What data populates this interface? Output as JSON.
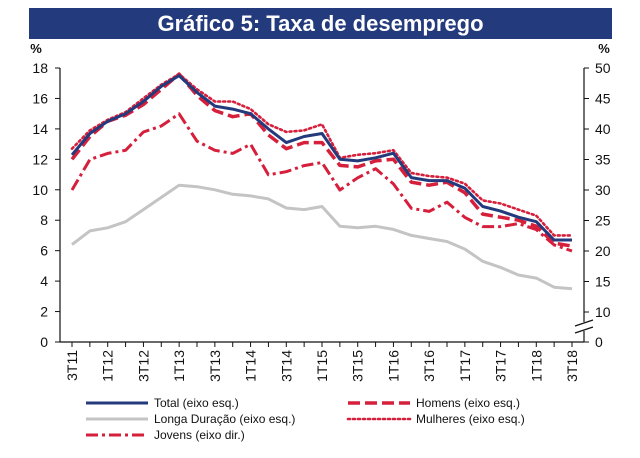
{
  "chart_data": {
    "type": "line",
    "title": "Gráfico 5: Taxa de desemprego",
    "left_axis": {
      "unit": "%",
      "ylim": [
        0,
        18
      ],
      "ticks": [
        0,
        2,
        4,
        6,
        8,
        10,
        12,
        14,
        16,
        18
      ]
    },
    "right_axis": {
      "unit": "%",
      "ylim": [
        5,
        50
      ],
      "ticks": [
        0,
        10,
        15,
        20,
        25,
        30,
        35,
        40,
        45,
        50
      ],
      "break_below": 10
    },
    "x_labels": [
      "3T11",
      "1T12",
      "3T12",
      "1T13",
      "3T13",
      "1T14",
      "3T14",
      "1T15",
      "3T15",
      "1T16",
      "3T16",
      "1T17",
      "3T17",
      "1T18",
      "3T18"
    ],
    "x": [
      "3T11",
      "4T11",
      "1T12",
      "2T12",
      "3T12",
      "4T12",
      "1T13",
      "2T13",
      "3T13",
      "4T13",
      "1T14",
      "2T14",
      "3T14",
      "4T14",
      "1T15",
      "2T15",
      "3T15",
      "4T15",
      "1T16",
      "2T16",
      "3T16",
      "4T16",
      "1T17",
      "2T17",
      "3T17",
      "4T17",
      "1T18",
      "2T18",
      "3T18"
    ],
    "series": [
      {
        "name": "Total (eixo esq.)",
        "axis": "left",
        "color": "#233a7c",
        "style": "solid",
        "values": [
          12.3,
          13.7,
          14.5,
          15.0,
          15.8,
          16.8,
          17.5,
          16.4,
          15.5,
          15.3,
          15.0,
          14.0,
          13.1,
          13.5,
          13.7,
          12.0,
          11.9,
          12.1,
          12.4,
          10.8,
          10.6,
          10.6,
          10.1,
          8.9,
          8.6,
          8.2,
          7.9,
          6.7,
          6.7
        ]
      },
      {
        "name": "Homens (eixo esq.)",
        "axis": "left",
        "color": "#d61f3b",
        "style": "dashed",
        "values": [
          12.0,
          13.5,
          14.5,
          14.9,
          15.6,
          16.6,
          17.6,
          16.2,
          15.2,
          14.8,
          15.0,
          13.6,
          12.7,
          13.1,
          13.1,
          11.6,
          11.5,
          11.9,
          12.0,
          10.5,
          10.3,
          10.5,
          9.8,
          8.4,
          8.2,
          8.0,
          7.6,
          6.5,
          6.3
        ]
      },
      {
        "name": "Mulheres (eixo esq.)",
        "axis": "left",
        "color": "#d61f3b",
        "style": "dotted",
        "values": [
          12.7,
          13.9,
          14.6,
          15.1,
          16.0,
          16.9,
          17.6,
          16.6,
          15.8,
          15.8,
          15.3,
          14.3,
          13.8,
          13.9,
          14.3,
          12.1,
          12.3,
          12.4,
          12.6,
          11.1,
          10.9,
          10.8,
          10.4,
          9.3,
          9.1,
          8.7,
          8.3,
          7.0,
          7.0
        ]
      },
      {
        "name": "Longa Duração (eixo esq.)",
        "axis": "left",
        "color": "#c4c4c4",
        "style": "solid",
        "values": [
          6.4,
          7.3,
          7.5,
          7.9,
          8.7,
          9.5,
          10.3,
          10.2,
          10.0,
          9.7,
          9.6,
          9.4,
          8.8,
          8.7,
          8.9,
          7.6,
          7.5,
          7.6,
          7.4,
          7.0,
          6.8,
          6.6,
          6.1,
          5.3,
          4.9,
          4.4,
          4.2,
          3.6,
          3.5
        ]
      },
      {
        "name": "Jovens (eixo dir.)",
        "axis": "right",
        "color": "#d61f3b",
        "style": "dashdot",
        "values": [
          30.0,
          35.0,
          36.0,
          36.5,
          39.5,
          40.5,
          42.5,
          38.0,
          36.5,
          36.0,
          37.5,
          32.5,
          33.0,
          34.0,
          34.5,
          30.0,
          32.0,
          33.5,
          31.0,
          27.0,
          26.5,
          28.0,
          25.5,
          24.0,
          24.0,
          24.5,
          23.5,
          21.0,
          20.0
        ]
      }
    ],
    "legend": [
      {
        "label": "Total (eixo esq.)",
        "series": 0
      },
      {
        "label": "Homens (eixo esq.)",
        "series": 1
      },
      {
        "label": "Longa Duração (eixo esq.)",
        "series": 3
      },
      {
        "label": "Mulheres (eixo esq.)",
        "series": 2
      },
      {
        "label": "Jovens (eixo dir.)",
        "series": 4
      }
    ]
  }
}
